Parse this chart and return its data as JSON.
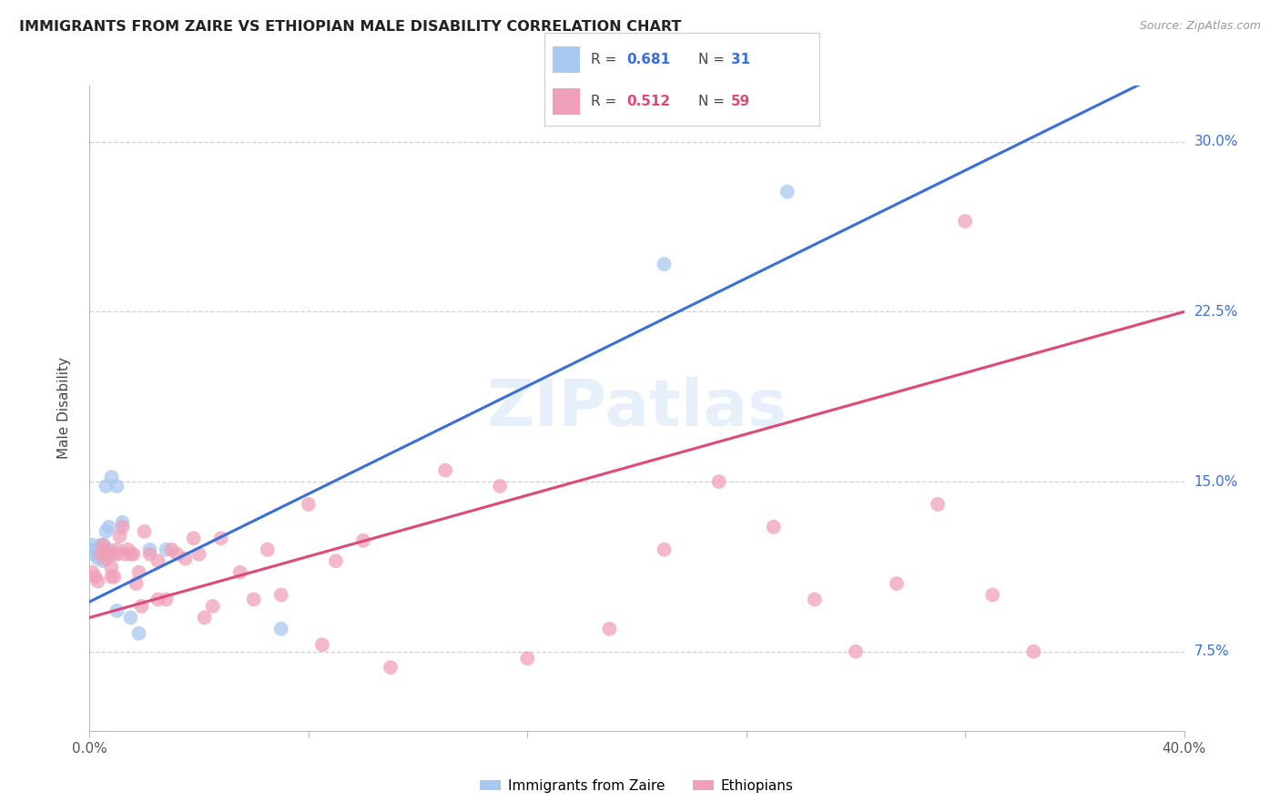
{
  "title": "IMMIGRANTS FROM ZAIRE VS ETHIOPIAN MALE DISABILITY CORRELATION CHART",
  "source": "Source: ZipAtlas.com",
  "ylabel": "Male Disability",
  "xlim": [
    0.0,
    0.4
  ],
  "ylim": [
    0.04,
    0.325
  ],
  "yticks": [
    0.075,
    0.15,
    0.225,
    0.3
  ],
  "ytick_labels": [
    "7.5%",
    "15.0%",
    "22.5%",
    "30.0%"
  ],
  "xticks": [
    0.0,
    0.08,
    0.16,
    0.24,
    0.32,
    0.4
  ],
  "xtick_labels": [
    "0.0%",
    "",
    "",
    "",
    "",
    "40.0%"
  ],
  "background_color": "#ffffff",
  "grid_color": "#d0d0d0",
  "zaire_color": "#a8c8f0",
  "ethiopian_color": "#f0a0b8",
  "zaire_line_color": "#3a6fd8",
  "ethiopian_line_color": "#e04878",
  "legend_zaire_r": "0.681",
  "legend_zaire_n": "31",
  "legend_ethiopian_r": "0.512",
  "legend_ethiopian_n": "59",
  "zaire_x": [
    0.001,
    0.001,
    0.002,
    0.002,
    0.003,
    0.003,
    0.003,
    0.004,
    0.004,
    0.004,
    0.005,
    0.005,
    0.005,
    0.005,
    0.006,
    0.006,
    0.007,
    0.007,
    0.008,
    0.008,
    0.009,
    0.01,
    0.01,
    0.012,
    0.015,
    0.018,
    0.022,
    0.028,
    0.07,
    0.21,
    0.255
  ],
  "zaire_y": [
    0.12,
    0.122,
    0.118,
    0.12,
    0.116,
    0.118,
    0.12,
    0.118,
    0.12,
    0.122,
    0.115,
    0.118,
    0.12,
    0.122,
    0.128,
    0.148,
    0.12,
    0.13,
    0.118,
    0.152,
    0.118,
    0.093,
    0.148,
    0.132,
    0.09,
    0.083,
    0.12,
    0.12,
    0.085,
    0.246,
    0.278
  ],
  "ethiopian_x": [
    0.001,
    0.002,
    0.003,
    0.004,
    0.005,
    0.005,
    0.006,
    0.006,
    0.007,
    0.008,
    0.008,
    0.009,
    0.01,
    0.01,
    0.011,
    0.012,
    0.013,
    0.014,
    0.015,
    0.016,
    0.017,
    0.018,
    0.019,
    0.02,
    0.022,
    0.025,
    0.025,
    0.028,
    0.03,
    0.032,
    0.035,
    0.038,
    0.04,
    0.042,
    0.045,
    0.048,
    0.055,
    0.06,
    0.065,
    0.07,
    0.08,
    0.085,
    0.09,
    0.1,
    0.11,
    0.13,
    0.15,
    0.16,
    0.19,
    0.21,
    0.23,
    0.25,
    0.265,
    0.28,
    0.295,
    0.31,
    0.33,
    0.345,
    0.32
  ],
  "ethiopian_y": [
    0.11,
    0.108,
    0.106,
    0.118,
    0.12,
    0.122,
    0.116,
    0.118,
    0.118,
    0.112,
    0.108,
    0.108,
    0.118,
    0.12,
    0.126,
    0.13,
    0.118,
    0.12,
    0.118,
    0.118,
    0.105,
    0.11,
    0.095,
    0.128,
    0.118,
    0.098,
    0.115,
    0.098,
    0.12,
    0.118,
    0.116,
    0.125,
    0.118,
    0.09,
    0.095,
    0.125,
    0.11,
    0.098,
    0.12,
    0.1,
    0.14,
    0.078,
    0.115,
    0.124,
    0.068,
    0.155,
    0.148,
    0.072,
    0.085,
    0.12,
    0.15,
    0.13,
    0.098,
    0.075,
    0.105,
    0.14,
    0.1,
    0.075,
    0.265
  ],
  "blue_line_x": [
    0.0,
    0.4
  ],
  "blue_line_y": [
    0.097,
    0.335
  ],
  "pink_line_x": [
    0.0,
    0.4
  ],
  "pink_line_y": [
    0.09,
    0.225
  ]
}
